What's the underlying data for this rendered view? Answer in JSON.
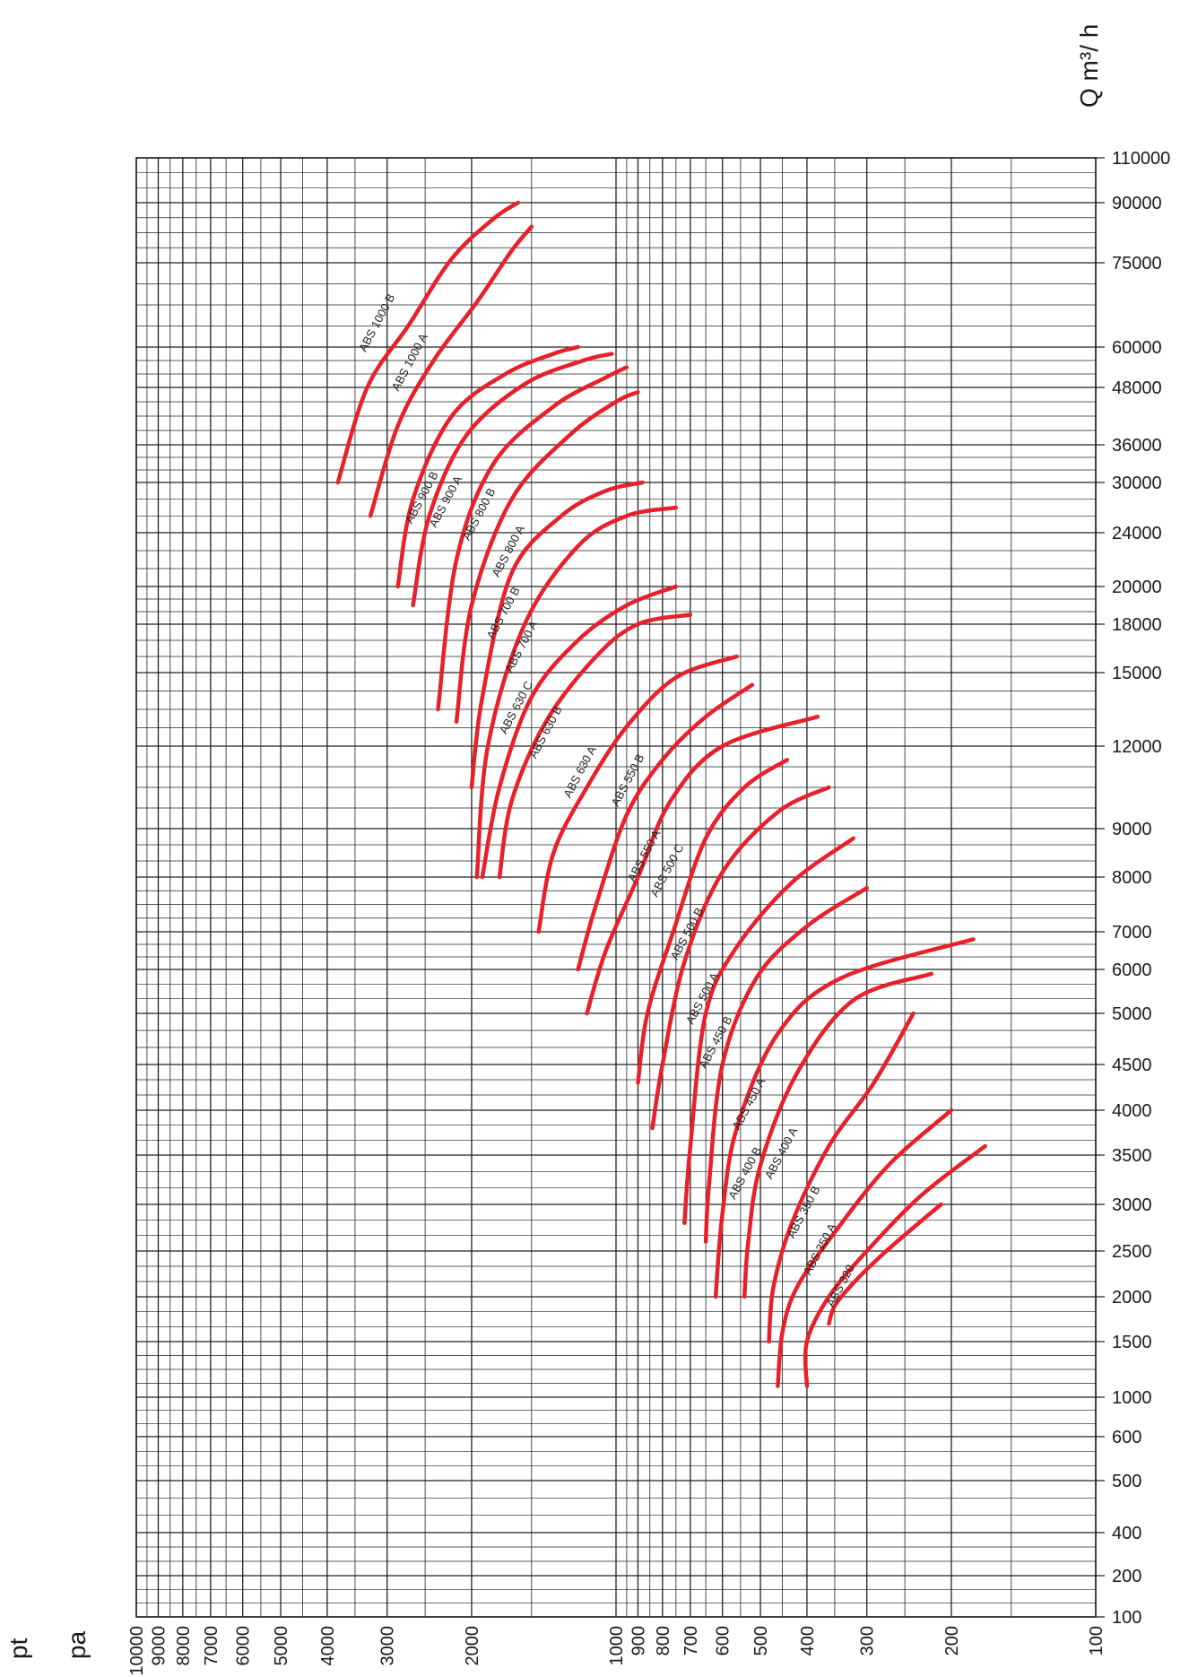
{
  "chart_data": {
    "type": "line",
    "title": "",
    "xlabel_top": "pt",
    "xlabel_bottom": "pa",
    "ylabel": "Q m³/ h",
    "x_scale": "log",
    "y_scale": "labeled-nonuniform",
    "x_range": [
      100,
      10000
    ],
    "y_range": [
      100,
      110000
    ],
    "grid": true,
    "legend": "none",
    "colors": {
      "curve": "#e8202a",
      "grid": "#222222",
      "text": "#1a1a1a"
    },
    "x_ticks": [
      10000,
      9000,
      8000,
      7000,
      6000,
      5000,
      4000,
      3000,
      2000,
      1000,
      900,
      800,
      700,
      600,
      500,
      400,
      300,
      200,
      100
    ],
    "y_ticks": [
      110000,
      90000,
      75000,
      60000,
      48000,
      36000,
      30000,
      24000,
      20000,
      18000,
      15000,
      12000,
      9000,
      8000,
      7000,
      6000,
      5000,
      4500,
      4000,
      3500,
      3000,
      2500,
      2000,
      1500,
      1000,
      600,
      500,
      400,
      200,
      100
    ],
    "series": [
      {
        "name": "ABS 1000 B",
        "label_at": [
          3100,
          64000
        ],
        "x": [
          3800,
          3300,
          2700,
          2200,
          1800,
          1600
        ],
        "y": [
          30000,
          48000,
          64000,
          76000,
          86000,
          90000
        ]
      },
      {
        "name": "ABS 1000 A",
        "label_at": [
          2650,
          55000
        ],
        "x": [
          3250,
          2850,
          2400,
          1950,
          1650,
          1500
        ],
        "y": [
          26000,
          40000,
          56000,
          68000,
          78000,
          84000
        ]
      },
      {
        "name": "ABS 900 B",
        "label_at": [
          2500,
          28000
        ],
        "x": [
          2850,
          2650,
          2200,
          1700,
          1350,
          1200
        ],
        "y": [
          20000,
          28000,
          42000,
          52000,
          58000,
          60000
        ]
      },
      {
        "name": "ABS 900 A",
        "label_at": [
          2230,
          27500
        ],
        "x": [
          2650,
          2450,
          2050,
          1550,
          1170,
          1020
        ],
        "y": [
          19000,
          26000,
          38000,
          49000,
          56000,
          58000
        ]
      },
      {
        "name": "ABS 800 B",
        "label_at": [
          1900,
          26000
        ],
        "x": [
          2350,
          2150,
          1800,
          1350,
          1050,
          950
        ],
        "y": [
          13500,
          22000,
          33000,
          44000,
          51000,
          54000
        ]
      },
      {
        "name": "ABS 800 A",
        "label_at": [
          1650,
          22500
        ],
        "x": [
          2150,
          2000,
          1650,
          1250,
          1000,
          900
        ],
        "y": [
          13000,
          19000,
          28000,
          38000,
          45000,
          47000
        ]
      },
      {
        "name": "ABS 700 B",
        "label_at": [
          1690,
          18500
        ],
        "x": [
          2000,
          1900,
          1650,
          1300,
          1050,
          880
        ],
        "y": [
          10500,
          14000,
          21000,
          26000,
          29000,
          30000
        ]
      },
      {
        "name": "ABS 700 A",
        "label_at": [
          1550,
          16500
        ],
        "x": [
          1950,
          1850,
          1550,
          1200,
          950,
          750
        ],
        "y": [
          8000,
          12000,
          18000,
          23000,
          26000,
          27000
        ]
      },
      {
        "name": "ABS 630 C",
        "label_at": [
          1590,
          13500
        ],
        "x": [
          1900,
          1750,
          1500,
          1200,
          950,
          750
        ],
        "y": [
          8000,
          10500,
          14000,
          17000,
          19000,
          20000
        ]
      },
      {
        "name": "ABS 630 B",
        "label_at": [
          1380,
          12500
        ],
        "x": [
          1750,
          1650,
          1400,
          1100,
          900,
          700
        ],
        "y": [
          8000,
          10000,
          13000,
          16000,
          18000,
          18500
        ]
      },
      {
        "name": "ABS 630 A",
        "label_at": [
          1170,
          11000
        ],
        "x": [
          1450,
          1350,
          1150,
          950,
          750,
          560
        ],
        "y": [
          7000,
          8500,
          10500,
          12800,
          14800,
          16000
        ]
      },
      {
        "name": "ABS 550 B",
        "label_at": [
          930,
          10700
        ],
        "x": [
          1200,
          1100,
          950,
          800,
          650,
          520
        ],
        "y": [
          6000,
          7500,
          9500,
          11500,
          13200,
          14500
        ]
      },
      {
        "name": "ABS 550 A",
        "label_at": [
          860,
          8400
        ],
        "x": [
          1150,
          1050,
          900,
          770,
          600,
          380
        ],
        "y": [
          5000,
          6500,
          8000,
          10000,
          12000,
          13200
        ]
      },
      {
        "name": "ABS 500 C",
        "label_at": [
          770,
          8100
        ],
        "x": [
          900,
          860,
          760,
          650,
          540,
          440
        ],
        "y": [
          4300,
          5000,
          7000,
          8800,
          10500,
          11500
        ]
      },
      {
        "name": "ABS 500 B",
        "label_at": [
          700,
          6900
        ],
        "x": [
          840,
          800,
          720,
          600,
          460,
          360
        ],
        "y": [
          3800,
          4500,
          6200,
          8100,
          9600,
          10500
        ]
      },
      {
        "name": "ABS 500 A",
        "label_at": [
          650,
          5300
        ],
        "x": [
          720,
          700,
          650,
          560,
          430,
          320
        ],
        "y": [
          2800,
          3600,
          5000,
          6600,
          7900,
          8800
        ]
      },
      {
        "name": "ABS 450 B",
        "label_at": [
          610,
          4700
        ],
        "x": [
          650,
          640,
          600,
          510,
          400,
          300
        ],
        "y": [
          2600,
          3200,
          4500,
          5800,
          7100,
          7800
        ]
      },
      {
        "name": "ABS 450 A",
        "label_at": [
          520,
          4050
        ],
        "x": [
          620,
          600,
          560,
          460,
          340,
          180
        ],
        "y": [
          2000,
          2900,
          3800,
          4800,
          5800,
          6800
        ]
      },
      {
        "name": "ABS 400 B",
        "label_at": [
          530,
          3300
        ],
        "x": [
          540,
          530,
          500,
          420,
          320,
          220
        ],
        "y": [
          2000,
          2600,
          3400,
          4400,
          5300,
          5900
        ]
      },
      {
        "name": "ABS 400 A",
        "label_at": [
          445,
          3500
        ],
        "x": [
          480,
          470,
          430,
          360,
          290,
          240
        ],
        "y": [
          1500,
          2100,
          2800,
          3600,
          4300,
          5000
        ]
      },
      {
        "name": "ABS 350 B",
        "label_at": [
          400,
          2900
        ],
        "x": [
          460,
          450,
          420,
          350,
          270,
          200
        ],
        "y": [
          1100,
          1600,
          2100,
          2700,
          3400,
          4000
        ]
      },
      {
        "name": "ABS 350 A",
        "label_at": [
          370,
          2500
        ],
        "x": [
          400,
          400,
          360,
          300,
          230,
          170
        ],
        "y": [
          1100,
          1500,
          2000,
          2500,
          3100,
          3600
        ]
      },
      {
        "name": "ABS 320",
        "label_at": [
          335,
          2100
        ],
        "x": [
          360,
          350,
          320,
          280,
          240,
          210
        ],
        "y": [
          1700,
          1900,
          2150,
          2450,
          2750,
          3000
        ]
      }
    ]
  }
}
